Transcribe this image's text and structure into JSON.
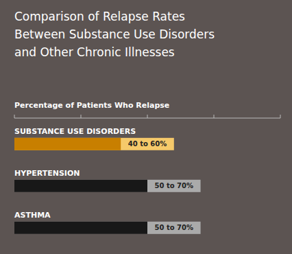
{
  "chart_data": {
    "type": "bar",
    "orientation": "horizontal",
    "title": "Comparison of Relapse Rates\nBetween Substance Use Disorders\nand Other Chronic Illnesses",
    "subtitle": "Percentage of Patients Who Relapse",
    "categories": [
      "SUBSTANCE USE DISORDERS",
      "HYPERTENSION",
      "ASTHMA"
    ],
    "series": [
      {
        "colors": [
          "#c87f00",
          "#181818",
          "#181818"
        ],
        "values": [
          40,
          50,
          50
        ]
      },
      {
        "colors": [
          "#f5c96a",
          "#aaaaaa",
          "#aaaaaa"
        ],
        "values": [
          60,
          70,
          70
        ],
        "value_labels": [
          "40 to 60%",
          "50 to 70%",
          "50 to 70%"
        ]
      }
    ],
    "stacked": false,
    "data_labels": true,
    "xlim": [
      0,
      100
    ],
    "xticks": [
      0,
      25,
      50,
      75,
      100
    ],
    "tick_labels": false,
    "grid": false
  }
}
